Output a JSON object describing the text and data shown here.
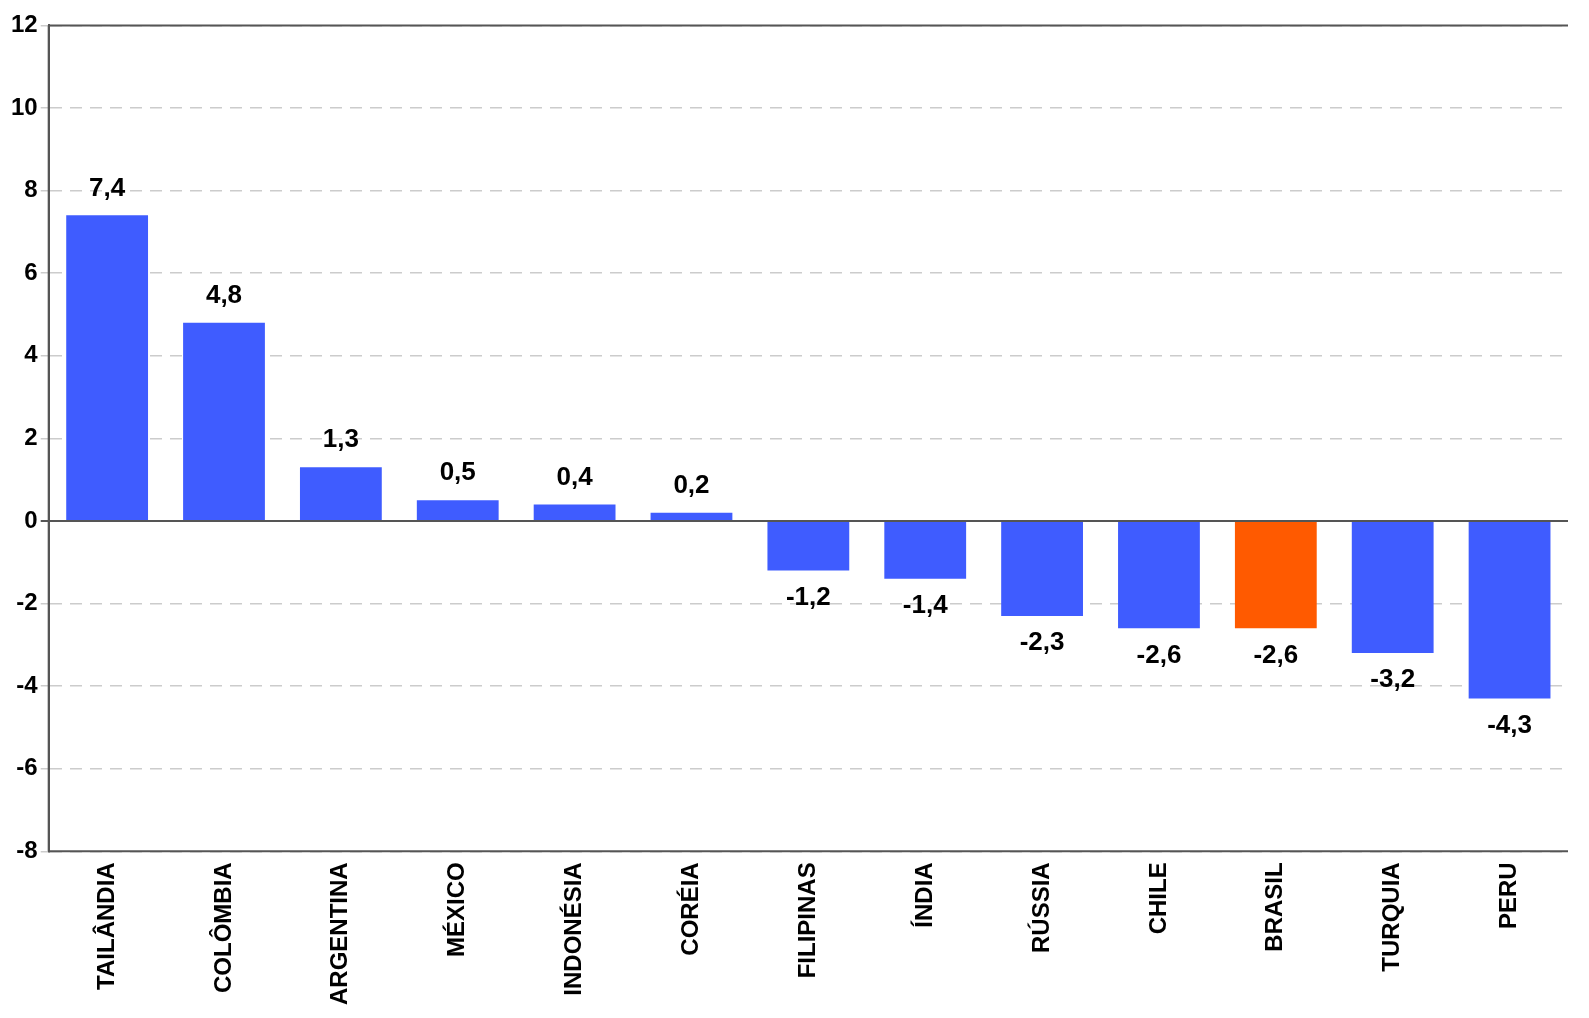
{
  "chart_data": {
    "type": "bar",
    "categories": [
      "TAILÂNDIA",
      "COLÔMBIA",
      "ARGENTINA",
      "MÉXICO",
      "INDONÉSIA",
      "CORÉIA",
      "FILIPINAS",
      "ÍNDIA",
      "RÚSSIA",
      "CHILE",
      "BRASIL",
      "TURQUIA",
      "PERU"
    ],
    "values": [
      7.4,
      4.8,
      1.3,
      0.5,
      0.4,
      0.2,
      -1.2,
      -1.4,
      -2.3,
      -2.6,
      -2.6,
      -3.2,
      -4.3
    ],
    "value_labels": [
      "7,4",
      "4,8",
      "1,3",
      "0,5",
      "0,4",
      "0,2",
      "-1,2",
      "-1,4",
      "-2,3",
      "-2,6",
      "-2,6",
      "-3,2",
      "-4,3"
    ],
    "colors": [
      "#3f5cff",
      "#3f5cff",
      "#3f5cff",
      "#3f5cff",
      "#3f5cff",
      "#3f5cff",
      "#3f5cff",
      "#3f5cff",
      "#3f5cff",
      "#3f5cff",
      "#ff5a00",
      "#3f5cff",
      "#3f5cff"
    ],
    "ylim": [
      -8,
      12
    ],
    "yticks": [
      -8,
      -6,
      -4,
      -2,
      0,
      2,
      4,
      6,
      8,
      10,
      12
    ],
    "grid": "y",
    "legend": false
  }
}
